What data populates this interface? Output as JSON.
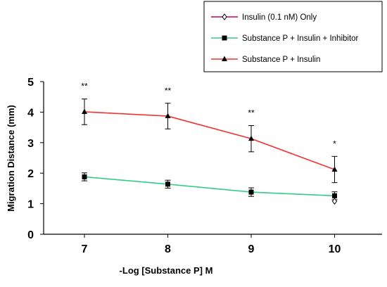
{
  "chart_data": {
    "type": "line",
    "title": "",
    "xlabel": "-Log [Substance P] M",
    "ylabel": "Migration Distance (mm)",
    "x": [
      7,
      8,
      9,
      10
    ],
    "x_tick_labels": [
      "7",
      "8",
      "9",
      "10"
    ],
    "ylim": [
      0,
      5
    ],
    "y_ticks": [
      0,
      1,
      2,
      3,
      4,
      5
    ],
    "y_tick_labels": [
      "0",
      "1",
      "2",
      "3",
      "4",
      "5"
    ],
    "grid": false,
    "legend_position": "top-right",
    "series": [
      {
        "name": "Insulin (0.1 nM) Only",
        "color": "#cc0066",
        "marker": "open-diamond",
        "x": [
          10
        ],
        "values": [
          1.08
        ],
        "errors": [
          0
        ]
      },
      {
        "name": "Substance P + Insulin + Inhibitor",
        "color": "#33cc88",
        "marker": "filled-square",
        "x": [
          7,
          8,
          9,
          10
        ],
        "values": [
          1.88,
          1.64,
          1.38,
          1.26
        ],
        "errors": [
          0.13,
          0.13,
          0.14,
          0.13
        ]
      },
      {
        "name": "Substance P + Insulin",
        "color": "#ee3333",
        "marker": "filled-triangle",
        "x": [
          7,
          8,
          9,
          10
        ],
        "values": [
          4.01,
          3.87,
          3.13,
          2.12
        ],
        "errors": [
          0.42,
          0.42,
          0.43,
          0.43
        ]
      }
    ],
    "annotations": [
      {
        "x": 7,
        "text": "**"
      },
      {
        "x": 8,
        "text": "**"
      },
      {
        "x": 9,
        "text": "**"
      },
      {
        "x": 10,
        "text": "*"
      }
    ]
  }
}
